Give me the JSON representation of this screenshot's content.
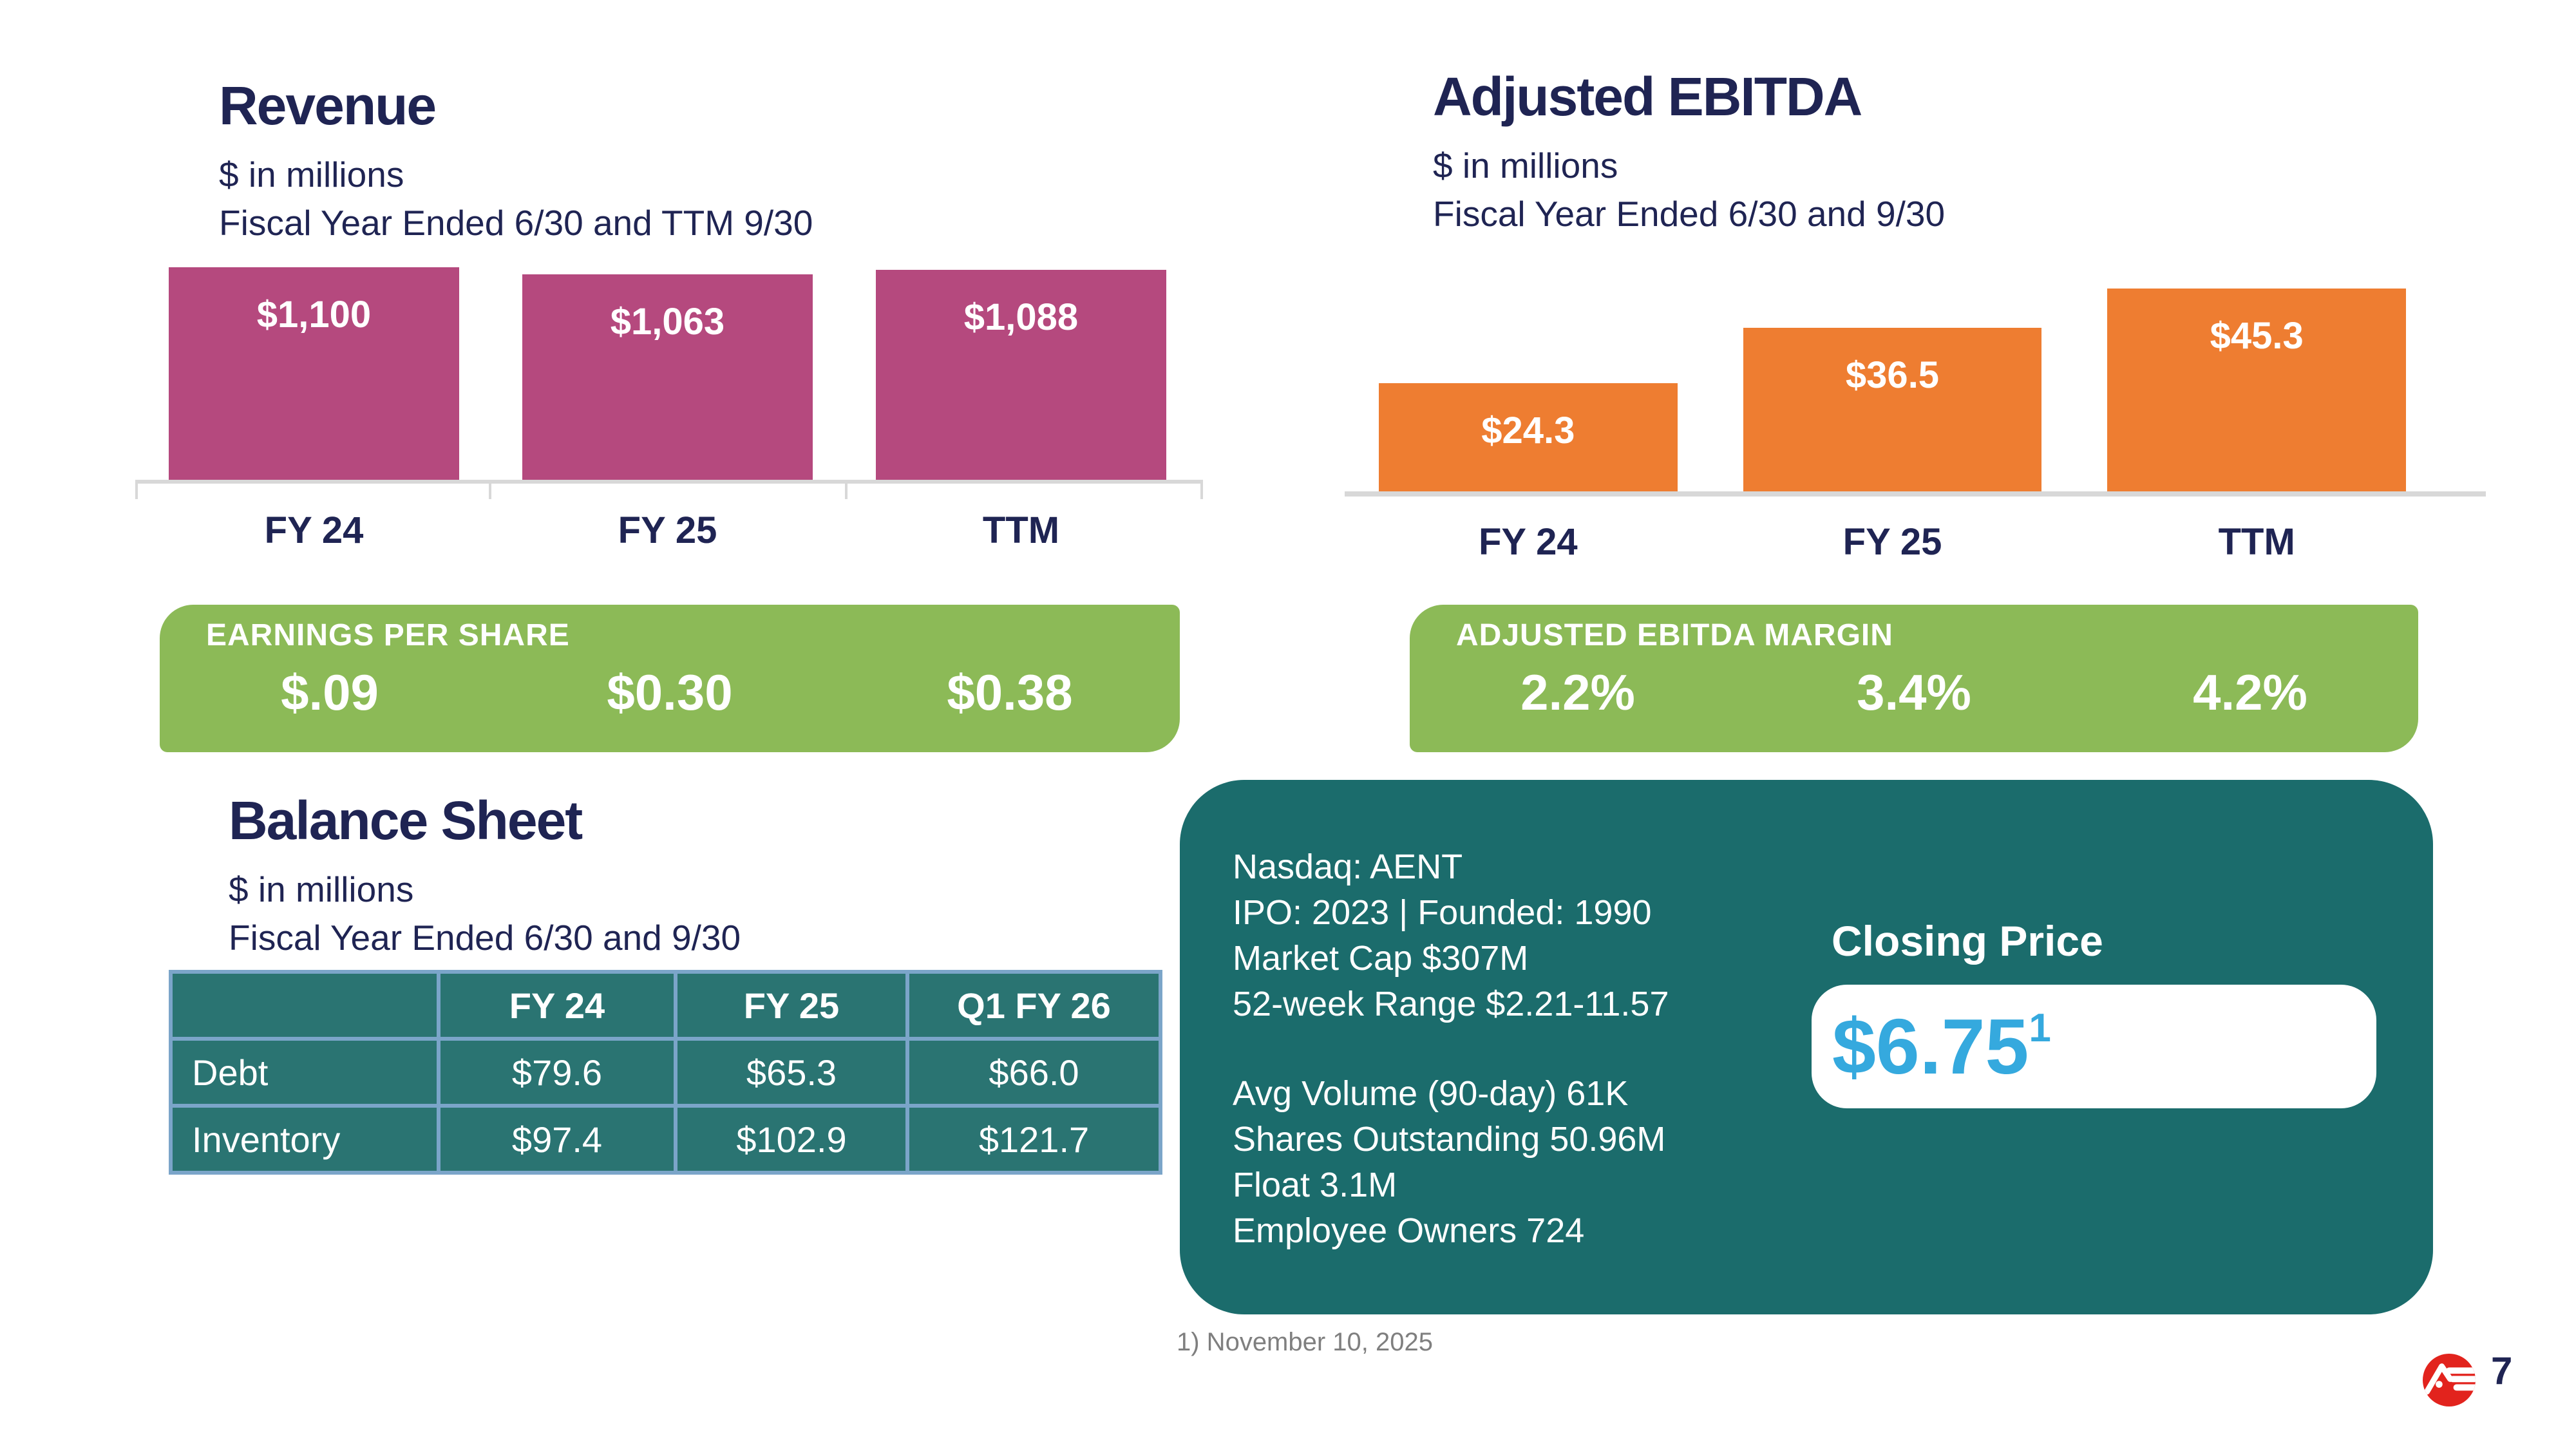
{
  "chart_data": [
    {
      "type": "bar",
      "title": "Revenue",
      "subtitle": "$ in millions",
      "period_note": "Fiscal Year Ended 6/30 and TTM 9/30",
      "categories": [
        "FY 24",
        "FY 25",
        "TTM"
      ],
      "values": [
        1100,
        1063,
        1088
      ],
      "value_labels": [
        "$1,100",
        "$1,063",
        "$1,088"
      ],
      "ylim": [
        0,
        1250
      ],
      "bar_color": "#b5497e",
      "grid": false,
      "legend": "none",
      "banner": {
        "label": "EARNINGS PER SHARE",
        "values": [
          "$.09",
          "$0.30",
          "$0.38"
        ]
      }
    },
    {
      "type": "bar",
      "title": "Adjusted EBITDA",
      "subtitle": "$ in millions",
      "period_note": "Fiscal Year Ended 6/30 and 9/30",
      "categories": [
        "FY 24",
        "FY 25",
        "TTM"
      ],
      "values": [
        24.3,
        36.5,
        45.3
      ],
      "value_labels": [
        "$24.3",
        "$36.5",
        "$45.3"
      ],
      "ylim": [
        0,
        50
      ],
      "bar_color": "#ee7d31",
      "grid": false,
      "legend": "none",
      "banner": {
        "label": "ADJUSTED EBITDA MARGIN",
        "values": [
          "2.2%",
          "3.4%",
          "4.2%"
        ]
      }
    },
    {
      "type": "table",
      "title": "Balance Sheet",
      "subtitle": "$ in millions",
      "period_note": "Fiscal Year Ended 6/30 and 9/30",
      "columns": [
        "",
        "FY 24",
        "FY 25",
        "Q1 FY 26"
      ],
      "rows": [
        [
          "Debt",
          "$79.6",
          "$65.3",
          "$66.0"
        ],
        [
          "Inventory",
          "$97.4",
          "$102.9",
          "$121.7"
        ]
      ]
    }
  ],
  "stock_info": {
    "lines_top": [
      "Nasdaq: AENT",
      "IPO: 2023 | Founded: 1990",
      "Market Cap $307M",
      "52-week Range $2.21-11.57"
    ],
    "lines_bottom": [
      "Avg Volume (90-day) 61K",
      "Shares Outstanding 50.96M",
      "Float 3.1M",
      "Employee Owners 724"
    ],
    "closing_price_label": "Closing Price",
    "closing_price_value": "$6.75",
    "closing_price_superscript": "1"
  },
  "footer": {
    "footnote": "1) November 10, 2025",
    "page_number": "7",
    "logo_name": "AE red circle logo"
  },
  "colors": {
    "revenue_bar": "#b5497e",
    "ebitda_bar": "#ee7d31",
    "banner_green": "#8cba57",
    "info_box_teal": "#1b6c6c",
    "table_cell_teal": "#2a7472",
    "table_border_blue": "#7ba5c9",
    "price_blue": "#35a9de",
    "logo_red": "#e2231d",
    "text_navy": "#1f2453",
    "axis_gray": "#d8d8d8",
    "footnote_gray": "#7f7f7f"
  }
}
